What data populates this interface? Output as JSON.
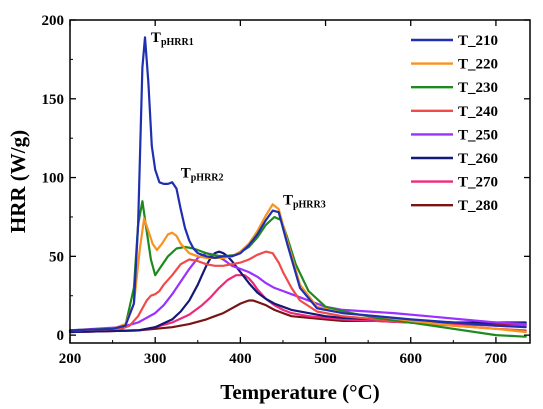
{
  "chart_data": {
    "type": "line",
    "title": "",
    "xlabel": "Temperature (°C)",
    "ylabel": "HRR (W/g)",
    "xlim": [
      200,
      740
    ],
    "ylim": [
      -5,
      200
    ],
    "xticks": [
      200,
      300,
      400,
      500,
      600,
      700
    ],
    "yticks": [
      0,
      50,
      100,
      150,
      200
    ],
    "grid": false,
    "legend_position": "top-right",
    "annotations": [
      {
        "main": "T",
        "sub": "pHRR1",
        "x": 295,
        "y": 186
      },
      {
        "main": "T",
        "sub": "pHRR2",
        "x": 330,
        "y": 100
      },
      {
        "main": "T",
        "sub": "pHRR3",
        "x": 450,
        "y": 83
      }
    ],
    "series": [
      {
        "name": "T_210",
        "color": "#1f2fb0",
        "x": [
          200,
          250,
          265,
          275,
          280,
          285,
          288,
          292,
          296,
          300,
          305,
          310,
          315,
          320,
          325,
          330,
          335,
          340,
          345,
          350,
          360,
          370,
          380,
          390,
          400,
          410,
          420,
          430,
          438,
          445,
          455,
          470,
          490,
          520,
          560,
          600,
          650,
          700,
          735
        ],
        "y": [
          3,
          4,
          6,
          20,
          70,
          170,
          189,
          160,
          120,
          105,
          97,
          96,
          96,
          97,
          93,
          80,
          68,
          60,
          55,
          52,
          50,
          49,
          50,
          50,
          52,
          57,
          64,
          73,
          79,
          78,
          58,
          30,
          17,
          14,
          12,
          10,
          8,
          6,
          5
        ]
      },
      {
        "name": "T_220",
        "color": "#f7931e",
        "x": [
          200,
          250,
          265,
          275,
          282,
          287,
          292,
          297,
          302,
          308,
          315,
          320,
          325,
          330,
          340,
          350,
          360,
          370,
          380,
          390,
          400,
          410,
          420,
          430,
          438,
          445,
          455,
          470,
          490,
          520,
          560,
          600,
          650,
          700,
          735
        ],
        "y": [
          3,
          4,
          7,
          20,
          55,
          74,
          66,
          58,
          54,
          58,
          64,
          65,
          63,
          58,
          52,
          50,
          49,
          49,
          49,
          50,
          53,
          58,
          66,
          76,
          83,
          80,
          60,
          32,
          18,
          14,
          12,
          9,
          6,
          4,
          2
        ]
      },
      {
        "name": "T_230",
        "color": "#1e8a1e",
        "x": [
          200,
          250,
          265,
          275,
          280,
          285,
          290,
          295,
          300,
          305,
          315,
          325,
          335,
          345,
          355,
          365,
          380,
          395,
          410,
          420,
          430,
          440,
          448,
          455,
          465,
          480,
          500,
          530,
          560,
          600,
          650,
          700,
          735
        ],
        "y": [
          3,
          4,
          6,
          30,
          70,
          85,
          66,
          48,
          38,
          42,
          50,
          55,
          56,
          55,
          53,
          51,
          50,
          51,
          56,
          62,
          70,
          75,
          73,
          62,
          45,
          28,
          18,
          14,
          11,
          8,
          4,
          0,
          -1
        ]
      },
      {
        "name": "T_240",
        "color": "#f04a4a",
        "x": [
          200,
          260,
          270,
          280,
          290,
          295,
          300,
          305,
          310,
          320,
          330,
          340,
          350,
          360,
          370,
          380,
          390,
          400,
          410,
          420,
          430,
          438,
          445,
          450,
          460,
          470,
          490,
          520,
          560,
          600,
          650,
          700,
          735
        ],
        "y": [
          3,
          4,
          6,
          12,
          22,
          25,
          26,
          28,
          32,
          38,
          45,
          48,
          47,
          45,
          44,
          44,
          45,
          46,
          48,
          51,
          53,
          52,
          46,
          40,
          30,
          22,
          15,
          12,
          10,
          8,
          6,
          4,
          3
        ]
      },
      {
        "name": "T_250",
        "color": "#9b30ff",
        "x": [
          200,
          260,
          280,
          290,
          300,
          310,
          320,
          330,
          340,
          350,
          360,
          370,
          380,
          390,
          400,
          410,
          420,
          430,
          440,
          450,
          460,
          470,
          480,
          490,
          500,
          520,
          550,
          580,
          620,
          660,
          700,
          735
        ],
        "y": [
          3,
          5,
          8,
          11,
          14,
          19,
          26,
          34,
          42,
          49,
          52,
          51,
          48,
          44,
          42,
          40,
          37,
          33,
          30,
          28,
          26,
          24,
          22,
          20,
          18,
          16,
          15,
          14,
          12,
          10,
          8,
          7
        ]
      },
      {
        "name": "T_260",
        "color": "#141878",
        "x": [
          200,
          280,
          300,
          320,
          330,
          340,
          350,
          355,
          360,
          365,
          370,
          375,
          380,
          385,
          390,
          400,
          410,
          420,
          430,
          440,
          450,
          460,
          480,
          500,
          520,
          560,
          600,
          650,
          700,
          735
        ],
        "y": [
          2,
          3,
          5,
          10,
          15,
          22,
          32,
          38,
          44,
          49,
          52,
          53,
          52,
          50,
          47,
          40,
          33,
          27,
          23,
          20,
          18,
          16,
          14,
          12,
          11,
          10,
          9,
          8,
          8,
          8
        ]
      },
      {
        "name": "T_270",
        "color": "#f0287a",
        "x": [
          200,
          280,
          300,
          320,
          340,
          355,
          365,
          375,
          385,
          395,
          400,
          405,
          410,
          415,
          420,
          425,
          430,
          440,
          450,
          460,
          480,
          500,
          520,
          560,
          600,
          650,
          700,
          735
        ],
        "y": [
          2,
          3,
          5,
          8,
          13,
          19,
          24,
          30,
          35,
          38,
          38,
          38,
          36,
          33,
          29,
          26,
          23,
          19,
          16,
          14,
          12,
          11,
          10,
          9,
          8,
          7,
          6,
          6
        ]
      },
      {
        "name": "T_280",
        "color": "#7a1414",
        "x": [
          200,
          280,
          300,
          320,
          340,
          360,
          370,
          380,
          390,
          400,
          405,
          410,
          415,
          420,
          425,
          430,
          440,
          450,
          460,
          480,
          500,
          520,
          560,
          600,
          650,
          700,
          735
        ],
        "y": [
          2,
          3,
          4,
          5,
          7,
          10,
          12,
          14,
          17,
          20,
          21,
          22,
          22,
          21,
          20,
          19,
          16,
          14,
          12,
          11,
          10,
          9,
          9,
          8,
          7,
          7,
          7
        ]
      }
    ]
  }
}
